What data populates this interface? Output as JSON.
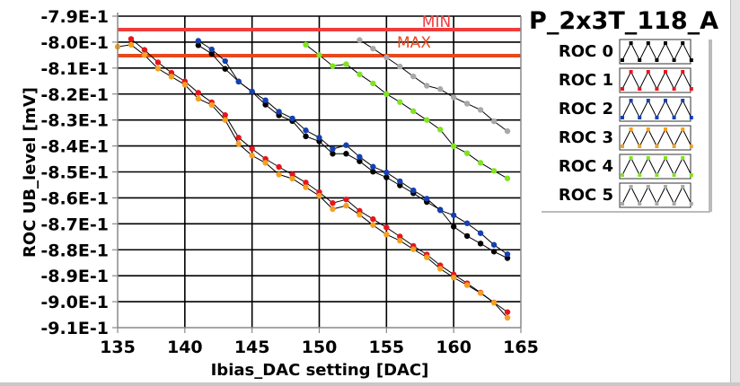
{
  "chart_data": {
    "type": "line",
    "title": "P_2x3T_118_A",
    "xlabel": "Ibias_DAC setting [DAC]",
    "ylabel": "ROC UB_level [mV]",
    "xlim": [
      135,
      165
    ],
    "ylim": [
      -0.91,
      -0.79
    ],
    "grid": true,
    "legend_position": "right",
    "xticks": [
      135,
      140,
      145,
      150,
      155,
      160,
      165
    ],
    "xtick_labels": [
      "135",
      "140",
      "145",
      "150",
      "155",
      "160",
      "165"
    ],
    "yticks": [
      -0.79,
      -0.8,
      -0.81,
      -0.82,
      -0.83,
      -0.84,
      -0.85,
      -0.86,
      -0.87,
      -0.88,
      -0.89,
      -0.9,
      -0.91
    ],
    "ytick_labels": [
      "-7.9E-1",
      "-8.0E-1",
      "-8.1E-1",
      "-8.2E-1",
      "-8.3E-1",
      "-8.4E-1",
      "-8.5E-1",
      "-8.6E-1",
      "-8.7E-1",
      "-8.8E-1",
      "-8.9E-1",
      "-9.0E-1",
      "-9.1E-1"
    ],
    "reference_lines": [
      {
        "name": "MIN",
        "y": -0.7952,
        "color": "#f03c3c"
      },
      {
        "name": "MAX",
        "y": -0.8052,
        "color": "#e8481c"
      }
    ],
    "series": [
      {
        "name": "ROC 0",
        "color": "#000000",
        "x": [
          141,
          142,
          143,
          144,
          145,
          146,
          147,
          148,
          149,
          150,
          151,
          152,
          153,
          154,
          155,
          156,
          157,
          158,
          159,
          160,
          161,
          162,
          163,
          164
        ],
        "y": [
          -0.8012,
          -0.8045,
          -0.8103,
          -0.8152,
          -0.8192,
          -0.8241,
          -0.8282,
          -0.8304,
          -0.8363,
          -0.8382,
          -0.843,
          -0.843,
          -0.8459,
          -0.8499,
          -0.8521,
          -0.8552,
          -0.8582,
          -0.8616,
          -0.8646,
          -0.8711,
          -0.8747,
          -0.8776,
          -0.8807,
          -0.8832
        ]
      },
      {
        "name": "ROC 1",
        "color": "#e8141c",
        "x": [
          136,
          137,
          138,
          139,
          140,
          141,
          142,
          143,
          144,
          145,
          146,
          147,
          148,
          149,
          150,
          151,
          152,
          153,
          154,
          155,
          156,
          157,
          158,
          159,
          160,
          161,
          162,
          163,
          164
        ],
        "y": [
          -0.7988,
          -0.803,
          -0.8078,
          -0.8118,
          -0.8151,
          -0.8195,
          -0.8232,
          -0.8281,
          -0.8368,
          -0.8411,
          -0.845,
          -0.8481,
          -0.851,
          -0.8541,
          -0.8578,
          -0.862,
          -0.8606,
          -0.865,
          -0.8682,
          -0.8714,
          -0.8749,
          -0.8785,
          -0.8818,
          -0.886,
          -0.8895,
          -0.8929,
          -0.8965,
          -0.9003,
          -0.904
        ]
      },
      {
        "name": "ROC 2",
        "color": "#1440b4",
        "x": [
          141,
          142,
          143,
          144,
          145,
          146,
          147,
          148,
          149,
          150,
          151,
          152,
          153,
          154,
          155,
          156,
          157,
          158,
          159,
          160,
          161,
          162,
          163,
          164
        ],
        "y": [
          -0.7995,
          -0.8028,
          -0.8073,
          -0.8152,
          -0.819,
          -0.8224,
          -0.8268,
          -0.8294,
          -0.834,
          -0.8368,
          -0.8412,
          -0.8397,
          -0.8442,
          -0.848,
          -0.8502,
          -0.8536,
          -0.8571,
          -0.8603,
          -0.8648,
          -0.8667,
          -0.8698,
          -0.8736,
          -0.8781,
          -0.8817
        ]
      },
      {
        "name": "ROC 3",
        "color": "#f4a020",
        "x": [
          135,
          136,
          137,
          138,
          139,
          140,
          141,
          142,
          143,
          144,
          145,
          146,
          147,
          148,
          149,
          150,
          151,
          152,
          153,
          154,
          155,
          156,
          157,
          158,
          159,
          160,
          161,
          162,
          163,
          164
        ],
        "y": [
          -0.8018,
          -0.801,
          -0.805,
          -0.8102,
          -0.8133,
          -0.8164,
          -0.8218,
          -0.8242,
          -0.83,
          -0.8392,
          -0.8437,
          -0.8465,
          -0.851,
          -0.8526,
          -0.8559,
          -0.8592,
          -0.8643,
          -0.863,
          -0.8665,
          -0.8705,
          -0.8741,
          -0.8765,
          -0.8798,
          -0.8829,
          -0.8873,
          -0.8907,
          -0.8936,
          -0.8967,
          -0.9004,
          -0.9062
        ]
      },
      {
        "name": "ROC 4",
        "color": "#80e420",
        "x": [
          149,
          150,
          151,
          152,
          153,
          154,
          155,
          156,
          157,
          158,
          159,
          160,
          161,
          162,
          163,
          164
        ],
        "y": [
          -0.801,
          -0.805,
          -0.8092,
          -0.8085,
          -0.8124,
          -0.8159,
          -0.82,
          -0.8231,
          -0.8266,
          -0.83,
          -0.8337,
          -0.8401,
          -0.8428,
          -0.8465,
          -0.8496,
          -0.8525
        ]
      },
      {
        "name": "ROC 5",
        "color": "#a8a8a8",
        "x": [
          153,
          154,
          155,
          156,
          157,
          158,
          159,
          160,
          161,
          162,
          163,
          164
        ],
        "y": [
          -0.7992,
          -0.8025,
          -0.8059,
          -0.8094,
          -0.8132,
          -0.8168,
          -0.8181,
          -0.8213,
          -0.8237,
          -0.8261,
          -0.8305,
          -0.8343
        ]
      }
    ]
  },
  "legend": {
    "items": [
      {
        "label": "ROC 0",
        "color": "#000000"
      },
      {
        "label": "ROC 1",
        "color": "#e8141c"
      },
      {
        "label": "ROC 2",
        "color": "#1440b4"
      },
      {
        "label": "ROC 3",
        "color": "#f4a020"
      },
      {
        "label": "ROC 4",
        "color": "#80e420"
      },
      {
        "label": "ROC 5",
        "color": "#a8a8a8"
      }
    ]
  }
}
